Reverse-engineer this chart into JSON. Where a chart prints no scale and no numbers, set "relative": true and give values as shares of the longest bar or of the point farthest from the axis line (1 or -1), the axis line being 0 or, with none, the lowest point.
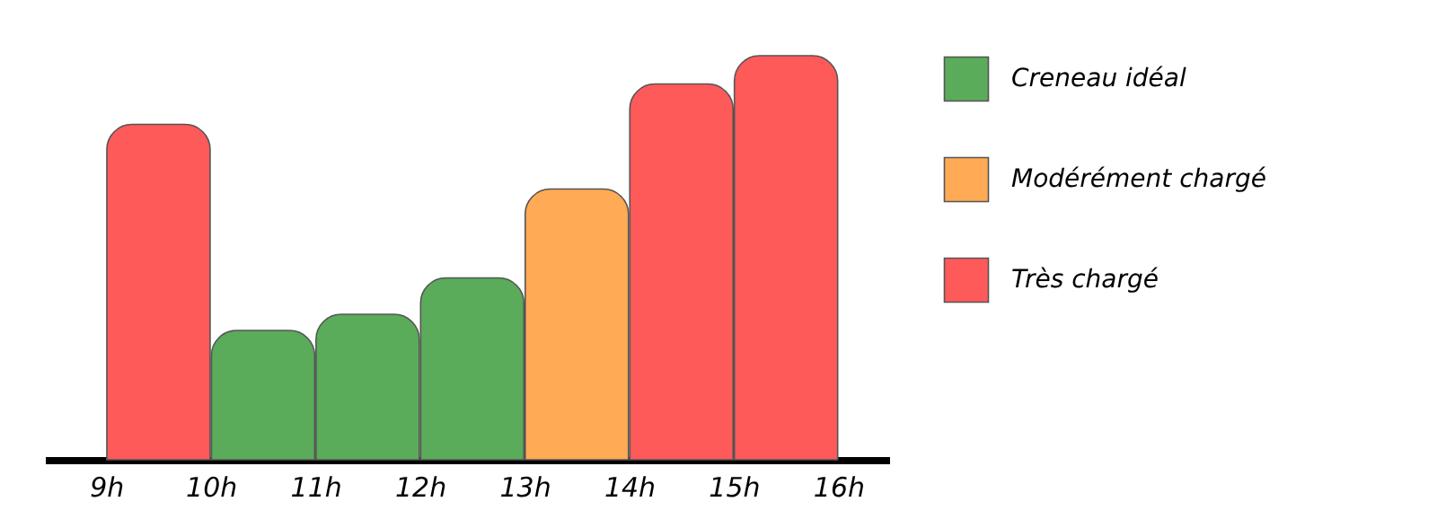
{
  "chart_data": {
    "type": "bar",
    "relative": true,
    "x": [
      9.5,
      10.5,
      11.5,
      12.5,
      13.5,
      14.5,
      15.5
    ],
    "xlim": [
      8.5,
      16.4
    ],
    "xticks": [
      {
        "value": 9,
        "label": "9h"
      },
      {
        "value": 10,
        "label": "10h"
      },
      {
        "value": 11,
        "label": "11h"
      },
      {
        "value": 12,
        "label": "12h"
      },
      {
        "value": 13,
        "label": "13h"
      },
      {
        "value": 14,
        "label": "14h"
      },
      {
        "value": 15,
        "label": "15h"
      },
      {
        "value": 16,
        "label": "16h"
      }
    ],
    "series": [
      {
        "name": "Creneau idéal",
        "color": "#5aab5a",
        "values": [
          null,
          0.32,
          0.36,
          0.45,
          null,
          null,
          null
        ]
      },
      {
        "name": "Modérément chargé",
        "color": "#ffaa55",
        "values": [
          null,
          null,
          null,
          null,
          0.67,
          null,
          null
        ]
      },
      {
        "name": "Très chargé",
        "color": "#ff5a5a",
        "values": [
          0.83,
          null,
          null,
          null,
          null,
          0.93,
          1
        ]
      }
    ],
    "legend": "right",
    "grid": false
  }
}
